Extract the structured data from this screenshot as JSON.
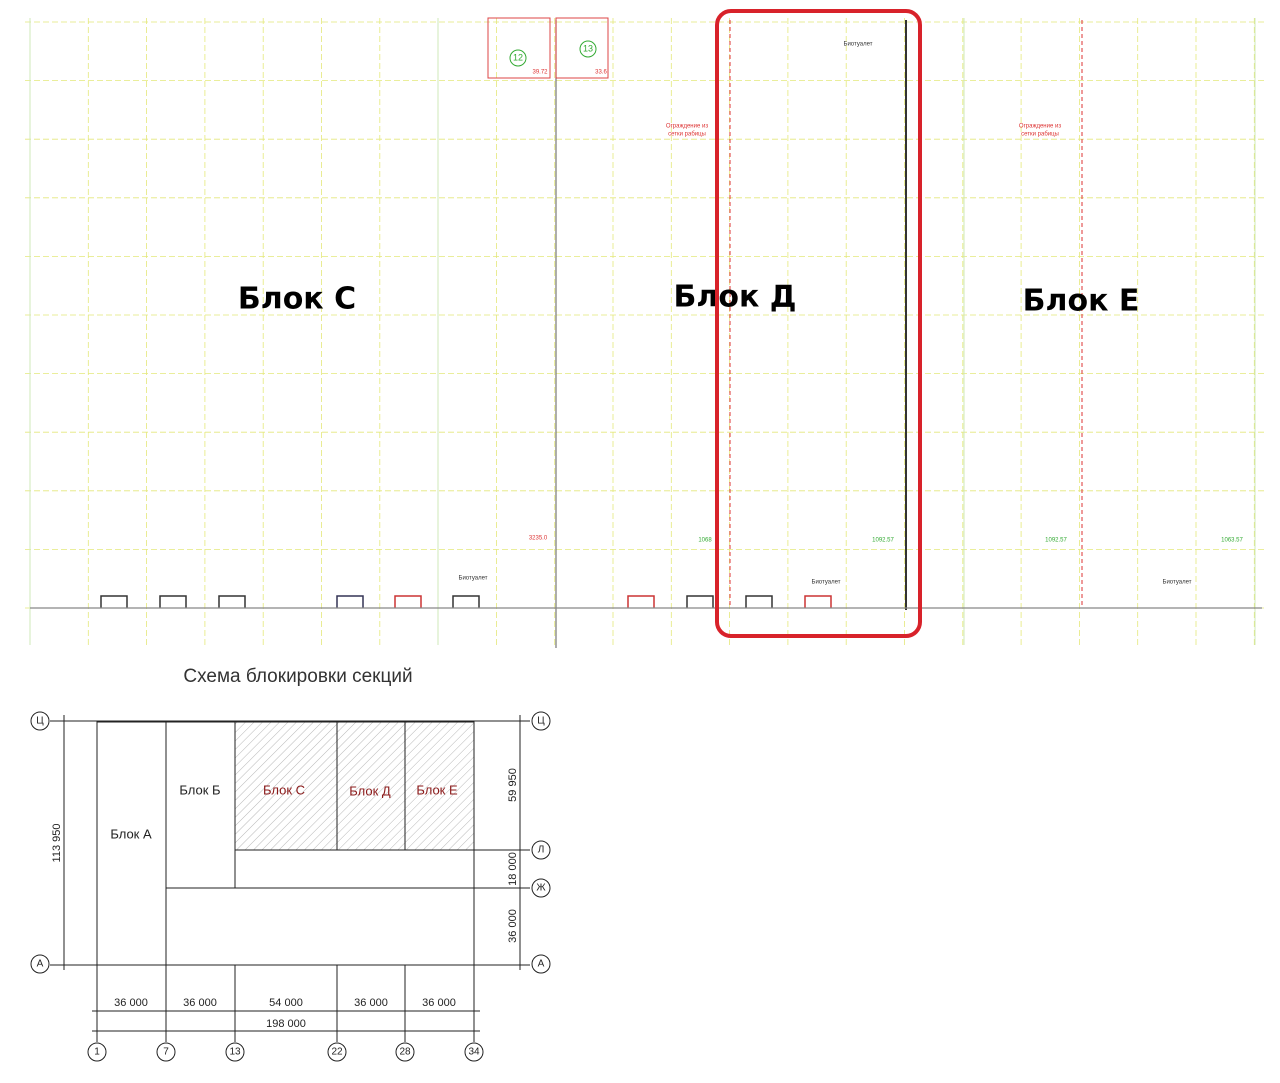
{
  "plan": {
    "blocks": [
      "Блок С",
      "Блок Д",
      "Блок Е"
    ],
    "rooms": [
      "12",
      "13"
    ],
    "room_areas": [
      "39.72",
      "33.6"
    ],
    "fence_notes": [
      [
        "Ограждение из",
        "сетки рабицы"
      ],
      [
        "Ограждение из",
        "сетки рабицы"
      ]
    ],
    "toilets": [
      "Биотуалет",
      "Биотуалет",
      "Биотуалет",
      "Биотуалет"
    ],
    "areas": [
      "3235.0",
      "1068",
      "1092.57",
      "1092.57",
      "1063.57"
    ]
  },
  "scheme": {
    "title": "Схема блокировки секций",
    "blocks": [
      "Блок А",
      "Блок Б",
      "Блок С",
      "Блок Д",
      "Блок Е"
    ],
    "rows": [
      "Ц",
      "Л",
      "Ж",
      "А"
    ],
    "columns": [
      "1",
      "7",
      "13",
      "22",
      "28",
      "34"
    ],
    "column_dims": [
      "36 000",
      "36 000",
      "54 000",
      "36 000",
      "36 000"
    ],
    "total_width": "198 000",
    "total_height": "113 950",
    "row_dims": [
      "59 950",
      "18 000",
      "36 000"
    ]
  }
}
